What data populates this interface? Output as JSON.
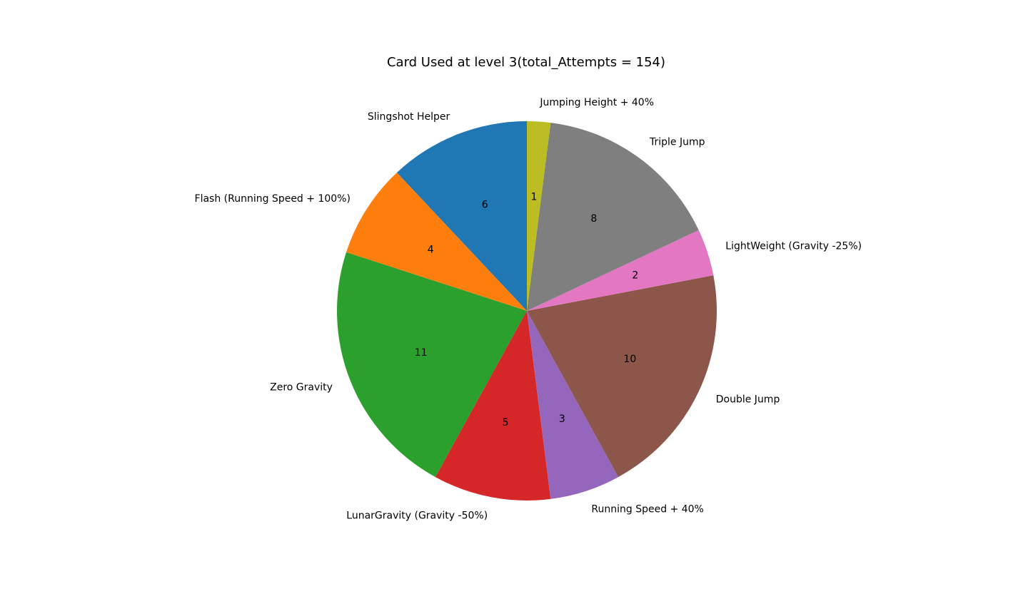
{
  "chart_data": {
    "type": "pie",
    "title": "Card Used at level 3(total_Attempts = 154)",
    "start_angle_deg": 90,
    "direction": "counterclockwise",
    "slices": [
      {
        "label": "Slingshot Helper",
        "value": 6,
        "color": "#1f77b4"
      },
      {
        "label": "Flash (Running Speed + 100%)",
        "value": 4,
        "color": "#ff7f0e"
      },
      {
        "label": "Zero Gravity",
        "value": 11,
        "color": "#2ca02c"
      },
      {
        "label": "LunarGravity (Gravity -50%)",
        "value": 5,
        "color": "#d62728"
      },
      {
        "label": "Running Speed + 40%",
        "value": 3,
        "color": "#9467bd"
      },
      {
        "label": "Double Jump",
        "value": 10,
        "color": "#8c564b"
      },
      {
        "label": "LightWeight (Gravity -25%)",
        "value": 2,
        "color": "#e377c2"
      },
      {
        "label": "Triple Jump",
        "value": 8,
        "color": "#7f7f7f"
      },
      {
        "label": "Jumping Height + 40%",
        "value": 1,
        "color": "#bcbd22"
      }
    ]
  }
}
